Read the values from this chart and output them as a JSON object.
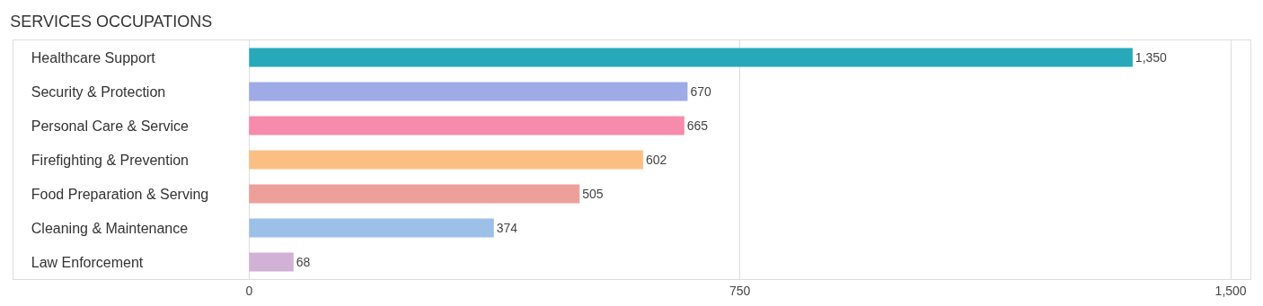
{
  "chart_data": {
    "type": "bar",
    "orientation": "horizontal",
    "title": "SERVICES OCCUPATIONS",
    "categories": [
      "Healthcare Support",
      "Security & Protection",
      "Personal Care & Service",
      "Firefighting & Prevention",
      "Food Preparation & Serving",
      "Cleaning & Maintenance",
      "Law Enforcement"
    ],
    "values": [
      1350,
      670,
      665,
      602,
      505,
      374,
      68
    ],
    "colors": [
      "#27a9b9",
      "#9fabe6",
      "#f78bab",
      "#fbbf83",
      "#eda09a",
      "#9dc0e8",
      "#d1b2d6"
    ],
    "xlim": [
      -360,
      1530
    ],
    "xticks": [
      0,
      {
        "value": 750,
        "label": "750"
      },
      {
        "value": 1500,
        "label": "1,500"
      }
    ],
    "value_labels": [
      "1,350",
      "670",
      "665",
      "602",
      "505",
      "374",
      "68"
    ],
    "grid": "x"
  }
}
